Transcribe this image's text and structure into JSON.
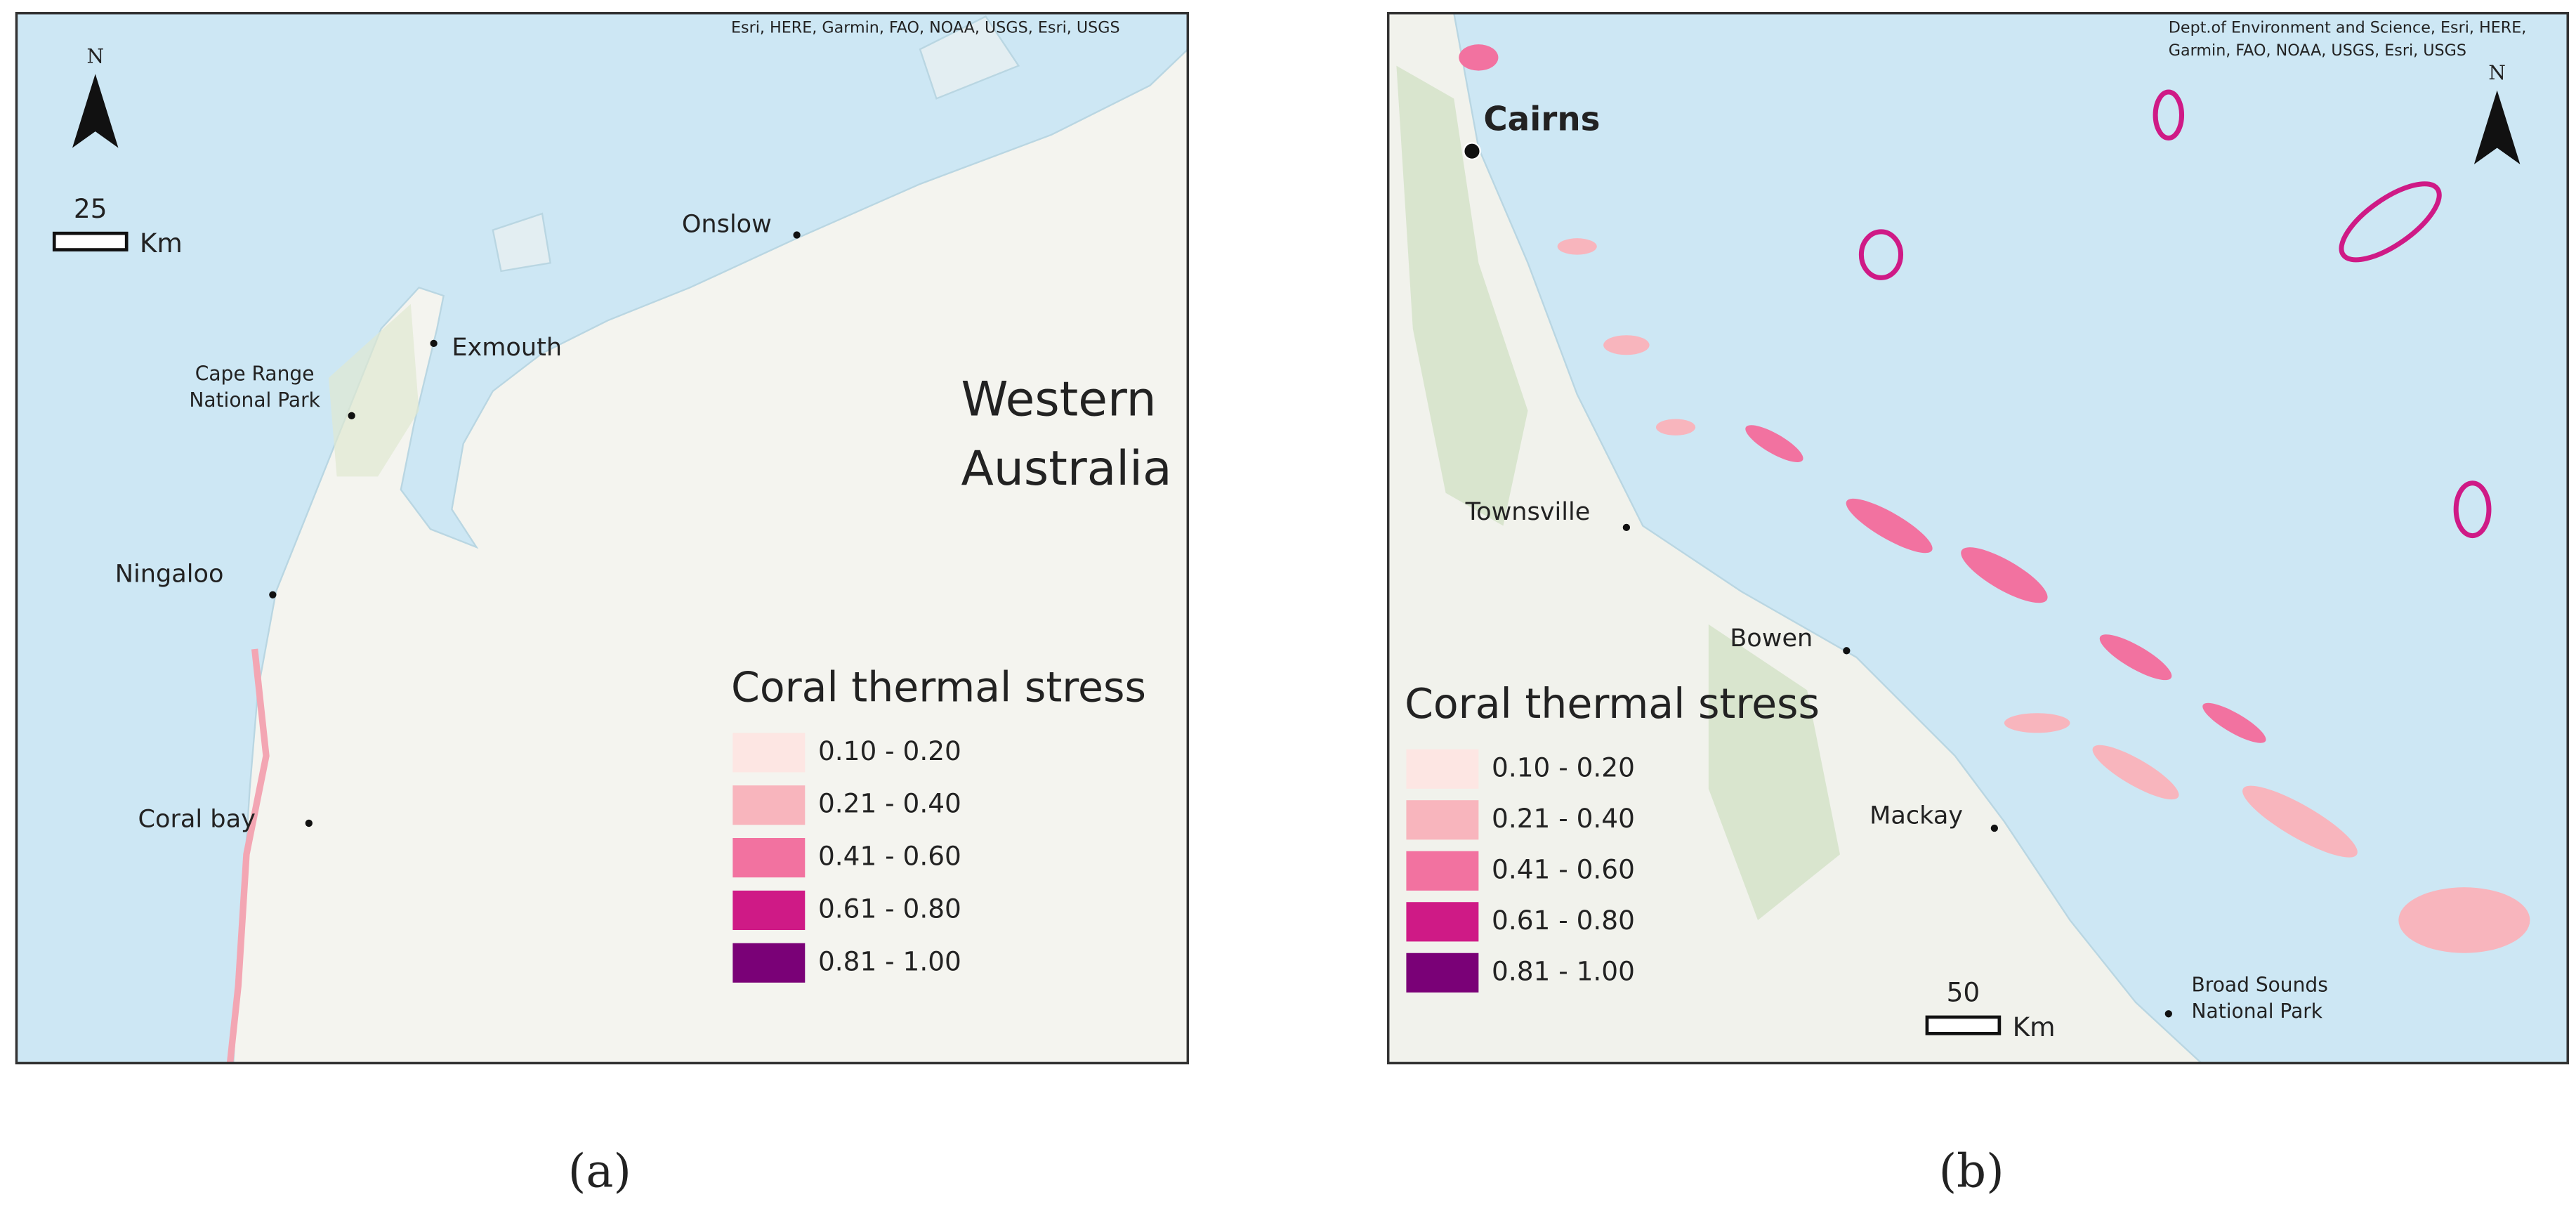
{
  "panels": [
    {
      "caption": "(a)",
      "attribution": [
        "Esri, HERE, Garmin, FAO, NOAA, USGS, Esri, USGS"
      ],
      "north": "N",
      "scale": {
        "distance": "25",
        "unit": "Km"
      },
      "places": [
        {
          "label": [
            "Onslow"
          ]
        },
        {
          "label": [
            "Exmouth"
          ]
        },
        {
          "label": [
            "Cape Range",
            "National Park"
          ]
        },
        {
          "label": [
            "Ningaloo"
          ]
        },
        {
          "label": [
            "Coral bay"
          ]
        }
      ],
      "region": [
        "Western",
        "Australia"
      ],
      "legend": {
        "title": "Coral thermal stress",
        "classes": [
          {
            "label": "0.10 - 0.20",
            "color": "#fde6e3"
          },
          {
            "label": "0.21 - 0.40",
            "color": "#f8b5bd"
          },
          {
            "label": "0.41 - 0.60",
            "color": "#f272a0"
          },
          {
            "label": "0.61 - 0.80",
            "color": "#cf1a86"
          },
          {
            "label": "0.81 - 1.00",
            "color": "#7a0177"
          }
        ]
      }
    },
    {
      "caption": "(b)",
      "attribution": [
        "Dept.of Environment and Science, Esri, HERE,",
        "Garmin, FAO, NOAA, USGS, Esri, USGS"
      ],
      "north": "N",
      "scale": {
        "distance": "50",
        "unit": "Km"
      },
      "places": [
        {
          "label": [
            "Cairns"
          ]
        },
        {
          "label": [
            "Townsville"
          ]
        },
        {
          "label": [
            "Bowen"
          ]
        },
        {
          "label": [
            "Mackay"
          ]
        },
        {
          "label": [
            "Broad Sounds",
            "National Park"
          ]
        }
      ],
      "legend": {
        "title": "Coral thermal stress",
        "classes": [
          {
            "label": "0.10 - 0.20",
            "color": "#fde6e3"
          },
          {
            "label": "0.21 - 0.40",
            "color": "#f8b5bd"
          },
          {
            "label": "0.41 - 0.60",
            "color": "#f272a0"
          },
          {
            "label": "0.61 - 0.80",
            "color": "#cf1a86"
          },
          {
            "label": "0.81 - 1.00",
            "color": "#7a0177"
          }
        ]
      }
    }
  ]
}
